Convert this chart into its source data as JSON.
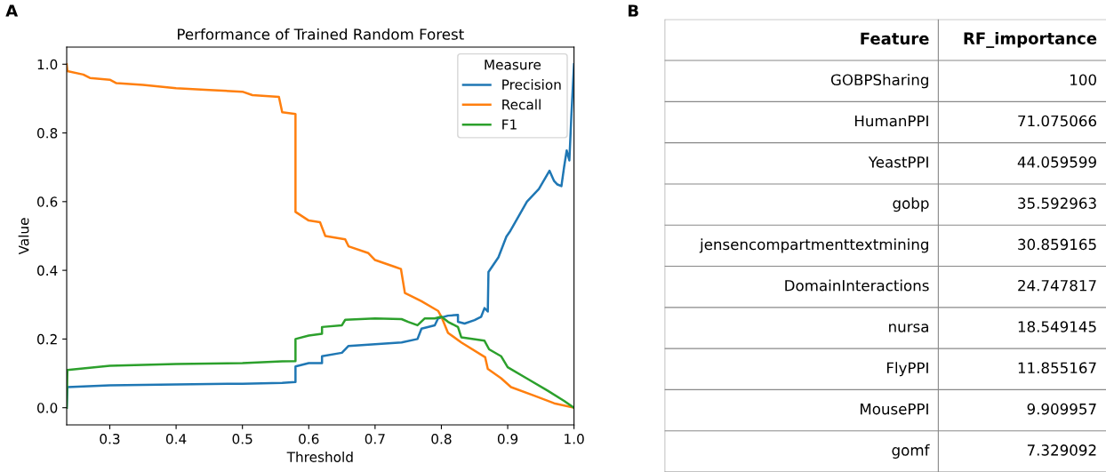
{
  "chart_data": [
    {
      "type": "line",
      "title": "Performance of Trained Random Forest",
      "xlabel": "Threshold",
      "ylabel": "Value",
      "legend_title": "Measure",
      "legend": "top right",
      "grid": false,
      "xlim": [
        0.235,
        1.0
      ],
      "ylim": [
        -0.05,
        1.05
      ],
      "xticks": [
        0.3,
        0.4,
        0.5,
        0.6,
        0.7,
        0.8,
        0.9,
        {
          "value": 1,
          "label": "1.0"
        }
      ],
      "yticks": [
        {
          "value": 0,
          "label": "0.0"
        },
        0.2,
        0.4,
        0.6,
        0.8,
        {
          "value": 1,
          "label": "1.0"
        }
      ],
      "annotations": [
        "A"
      ],
      "series": [
        {
          "name": "Precision",
          "color": "#1f77b4",
          "x": [
            0.235,
            0.236,
            0.3,
            0.4,
            0.5,
            0.56,
            0.58,
            0.58,
            0.6,
            0.62,
            0.62,
            0.65,
            0.66,
            0.7,
            0.74,
            0.764,
            0.77,
            0.79,
            0.795,
            0.81,
            0.825,
            0.825,
            0.835,
            0.85,
            0.86,
            0.865,
            0.87,
            0.871,
            0.886,
            0.898,
            0.904,
            0.929,
            0.947,
            0.963,
            0.97,
            0.975,
            0.981,
            0.985,
            0.989,
            0.993,
            0.996,
            1.0
          ],
          "values": [
            0.0,
            0.06,
            0.065,
            0.068,
            0.07,
            0.072,
            0.075,
            0.12,
            0.13,
            0.13,
            0.15,
            0.16,
            0.18,
            0.185,
            0.19,
            0.2,
            0.23,
            0.24,
            0.26,
            0.268,
            0.27,
            0.25,
            0.245,
            0.255,
            0.265,
            0.29,
            0.28,
            0.395,
            0.438,
            0.498,
            0.515,
            0.6,
            0.637,
            0.69,
            0.66,
            0.65,
            0.645,
            0.7,
            0.749,
            0.72,
            0.85,
            1.0
          ]
        },
        {
          "name": "Recall",
          "color": "#ff7f0e",
          "x": [
            0.235,
            0.236,
            0.26,
            0.27,
            0.3,
            0.31,
            0.35,
            0.4,
            0.45,
            0.5,
            0.515,
            0.555,
            0.56,
            0.58,
            0.58,
            0.6,
            0.617,
            0.625,
            0.655,
            0.66,
            0.69,
            0.7,
            0.73,
            0.739,
            0.745,
            0.76,
            0.77,
            0.795,
            0.8,
            0.81,
            0.83,
            0.866,
            0.87,
            0.89,
            0.905,
            0.94,
            0.97,
            1.0
          ],
          "values": [
            1.0,
            0.98,
            0.97,
            0.96,
            0.955,
            0.945,
            0.94,
            0.93,
            0.925,
            0.92,
            0.91,
            0.905,
            0.86,
            0.855,
            0.57,
            0.545,
            0.54,
            0.5,
            0.49,
            0.47,
            0.45,
            0.43,
            0.41,
            0.404,
            0.334,
            0.32,
            0.31,
            0.282,
            0.265,
            0.218,
            0.19,
            0.147,
            0.113,
            0.086,
            0.06,
            0.035,
            0.013,
            0.0
          ]
        },
        {
          "name": "F1",
          "color": "#2ca02c",
          "x": [
            0.235,
            0.236,
            0.3,
            0.4,
            0.5,
            0.56,
            0.58,
            0.58,
            0.6,
            0.62,
            0.62,
            0.65,
            0.655,
            0.7,
            0.74,
            0.75,
            0.764,
            0.775,
            0.79,
            0.8,
            0.81,
            0.825,
            0.83,
            0.865,
            0.872,
            0.89,
            0.9,
            0.93,
            0.96,
            0.985,
            1.0
          ],
          "values": [
            0.0,
            0.11,
            0.122,
            0.127,
            0.13,
            0.135,
            0.136,
            0.2,
            0.21,
            0.215,
            0.235,
            0.24,
            0.256,
            0.26,
            0.258,
            0.25,
            0.24,
            0.26,
            0.26,
            0.265,
            0.25,
            0.235,
            0.205,
            0.195,
            0.17,
            0.15,
            0.118,
            0.084,
            0.05,
            0.02,
            0.0
          ]
        }
      ]
    },
    {
      "type": "other",
      "xlabel": "Feature",
      "ylabel": "RF_importance",
      "annotations": [
        "B"
      ],
      "categories": [
        "GOBPSharing",
        "HumanPPI",
        "YeastPPI",
        "gobp",
        "jensencompartmenttextmining",
        "DomainInteractions",
        "nursa",
        "FlyPPI",
        "MousePPI",
        "gomf"
      ],
      "values": [
        100,
        71.075066,
        44.059599,
        35.592963,
        30.859165,
        24.747817,
        18.549145,
        11.855167,
        9.909957,
        7.329092
      ],
      "data_labels": true
    }
  ]
}
